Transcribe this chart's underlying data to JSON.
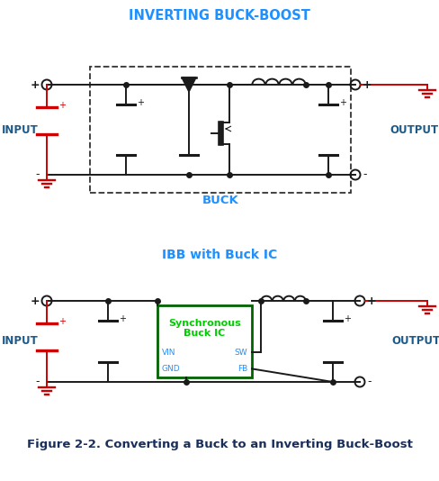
{
  "title1": "INVERTING BUCK-BOOST",
  "title2": "IBB with Buck IC",
  "title1_color": "#1E90FF",
  "title2_color": "#1E90FF",
  "buck_label": "BUCK",
  "buck_label_color": "#1E90FF",
  "input_label": "INPUT",
  "output_label": "OUTPUT",
  "label_color": "#1C5A8A",
  "figure_caption": "Figure 2-2. Converting a Buck to an Inverting Buck-Boost",
  "caption_color": "#1A2E5A",
  "ic_box_color": "#006400",
  "ic_text_color": "#00CC00",
  "ic_title": "Synchronous\nBuck IC",
  "ic_pin_color": "#1E90FF",
  "wire_color": "#1A1A1A",
  "red_wire_color": "#CC0000",
  "bg_color": "#FFFFFF"
}
